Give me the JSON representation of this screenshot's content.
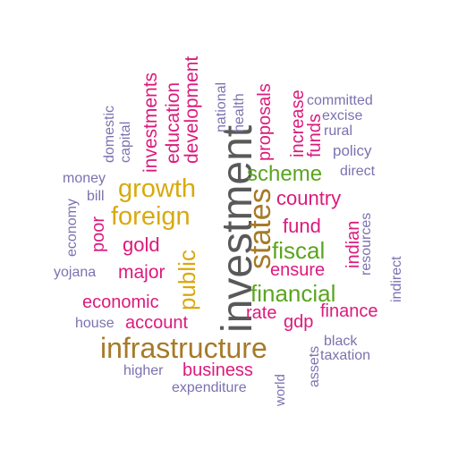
{
  "colors": {
    "gray": "#595959",
    "brown": "#a67a28",
    "gold": "#d9a90d",
    "green": "#5aa51f",
    "pink": "#dc1a7c",
    "lavender": "#7b72b0"
  },
  "words": [
    {
      "text": "investment",
      "color": "gray",
      "rotated": true
    },
    {
      "text": "infrastructure",
      "color": "brown",
      "rotated": false
    },
    {
      "text": "states",
      "color": "brown",
      "rotated": true
    },
    {
      "text": "growth",
      "color": "gold",
      "rotated": false
    },
    {
      "text": "foreign",
      "color": "gold",
      "rotated": false
    },
    {
      "text": "public",
      "color": "gold",
      "rotated": true
    },
    {
      "text": "scheme",
      "color": "green",
      "rotated": false
    },
    {
      "text": "fiscal",
      "color": "green",
      "rotated": false
    },
    {
      "text": "financial",
      "color": "green",
      "rotated": false
    },
    {
      "text": "country",
      "color": "pink",
      "rotated": false
    },
    {
      "text": "fund",
      "color": "pink",
      "rotated": false
    },
    {
      "text": "gold",
      "color": "pink",
      "rotated": false
    },
    {
      "text": "major",
      "color": "pink",
      "rotated": false
    },
    {
      "text": "economic",
      "color": "pink",
      "rotated": false
    },
    {
      "text": "account",
      "color": "pink",
      "rotated": false
    },
    {
      "text": "business",
      "color": "pink",
      "rotated": false
    },
    {
      "text": "ensure",
      "color": "pink",
      "rotated": false
    },
    {
      "text": "rate",
      "color": "pink",
      "rotated": false
    },
    {
      "text": "gdp",
      "color": "pink",
      "rotated": false
    },
    {
      "text": "finance",
      "color": "pink",
      "rotated": false
    },
    {
      "text": "poor",
      "color": "pink",
      "rotated": true
    },
    {
      "text": "indian",
      "color": "pink",
      "rotated": true
    },
    {
      "text": "proposals",
      "color": "pink",
      "rotated": true
    },
    {
      "text": "increase",
      "color": "pink",
      "rotated": true
    },
    {
      "text": "funds",
      "color": "pink",
      "rotated": true
    },
    {
      "text": "development",
      "color": "pink",
      "rotated": true
    },
    {
      "text": "education",
      "color": "pink",
      "rotated": true
    },
    {
      "text": "investments",
      "color": "pink",
      "rotated": true
    },
    {
      "text": "domestic",
      "color": "lavender",
      "rotated": true
    },
    {
      "text": "capital",
      "color": "lavender",
      "rotated": true
    },
    {
      "text": "national",
      "color": "lavender",
      "rotated": true
    },
    {
      "text": "health",
      "color": "lavender",
      "rotated": true
    },
    {
      "text": "committed",
      "color": "lavender",
      "rotated": false
    },
    {
      "text": "excise",
      "color": "lavender",
      "rotated": false
    },
    {
      "text": "rural",
      "color": "lavender",
      "rotated": false
    },
    {
      "text": "policy",
      "color": "lavender",
      "rotated": false
    },
    {
      "text": "direct",
      "color": "lavender",
      "rotated": false
    },
    {
      "text": "money",
      "color": "lavender",
      "rotated": false
    },
    {
      "text": "bill",
      "color": "lavender",
      "rotated": false
    },
    {
      "text": "economy",
      "color": "lavender",
      "rotated": true
    },
    {
      "text": "resources",
      "color": "lavender",
      "rotated": true
    },
    {
      "text": "yojana",
      "color": "lavender",
      "rotated": false
    },
    {
      "text": "indirect",
      "color": "lavender",
      "rotated": true
    },
    {
      "text": "house",
      "color": "lavender",
      "rotated": false
    },
    {
      "text": "black",
      "color": "lavender",
      "rotated": false
    },
    {
      "text": "taxation",
      "color": "lavender",
      "rotated": false
    },
    {
      "text": "assets",
      "color": "lavender",
      "rotated": true
    },
    {
      "text": "higher",
      "color": "lavender",
      "rotated": false
    },
    {
      "text": "expenditure",
      "color": "lavender",
      "rotated": false
    },
    {
      "text": "world",
      "color": "lavender",
      "rotated": true
    }
  ]
}
